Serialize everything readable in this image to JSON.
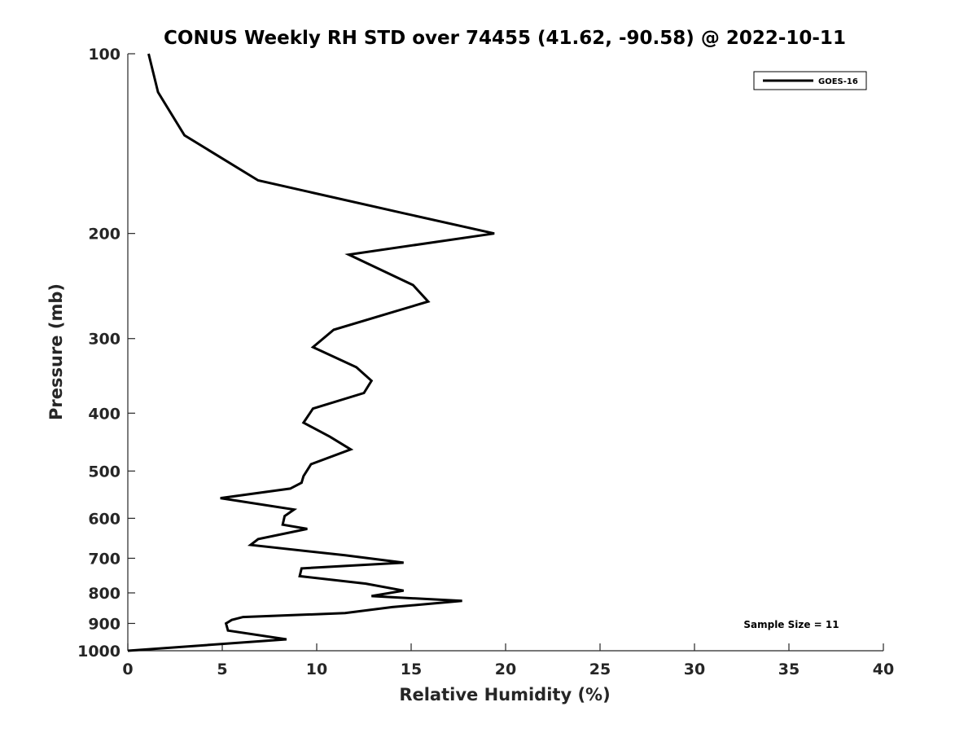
{
  "chart_data": {
    "type": "line",
    "title": "CONUS Weekly RH STD over 74455 (41.62, -90.58) @ 2022-10-11",
    "xlabel": "Relative Humidity (%)",
    "ylabel": "Pressure (mb)",
    "xlim": [
      0,
      40
    ],
    "ylim": [
      100,
      1000
    ],
    "y_scale": "log",
    "y_reversed": true,
    "xticks": [
      0,
      5,
      10,
      15,
      20,
      25,
      30,
      35,
      40
    ],
    "yticks": [
      100,
      200,
      300,
      400,
      500,
      600,
      700,
      800,
      900,
      1000
    ],
    "grid": false,
    "legend_position": "top-right",
    "annotation": "Sample Size = 11",
    "series": [
      {
        "name": "GOES-16",
        "color": "#000000",
        "x": [
          1.1,
          1.6,
          3.0,
          6.9,
          14.6,
          19.4,
          11.7,
          15.1,
          15.9,
          10.9,
          9.8,
          12.1,
          12.9,
          12.5,
          9.8,
          9.3,
          10.7,
          11.8,
          9.7,
          9.3,
          9.2,
          8.6,
          4.9,
          8.8,
          8.3,
          8.2,
          9.5,
          6.9,
          6.5,
          11.5,
          14.6,
          9.2,
          9.1,
          12.6,
          14.6,
          12.9,
          17.7,
          14.0,
          11.5,
          6.1,
          5.5,
          5.2,
          5.3,
          8.4,
          0.0
        ],
        "y": [
          100,
          116,
          137,
          163,
          185,
          200,
          217,
          244,
          260,
          290,
          310,
          335,
          353,
          370,
          393,
          415,
          438,
          460,
          487,
          510,
          523,
          535,
          555,
          580,
          595,
          615,
          625,
          650,
          665,
          692,
          712,
          728,
          750,
          772,
          793,
          810,
          825,
          845,
          865,
          878,
          888,
          900,
          925,
          957,
          1000
        ]
      }
    ]
  }
}
